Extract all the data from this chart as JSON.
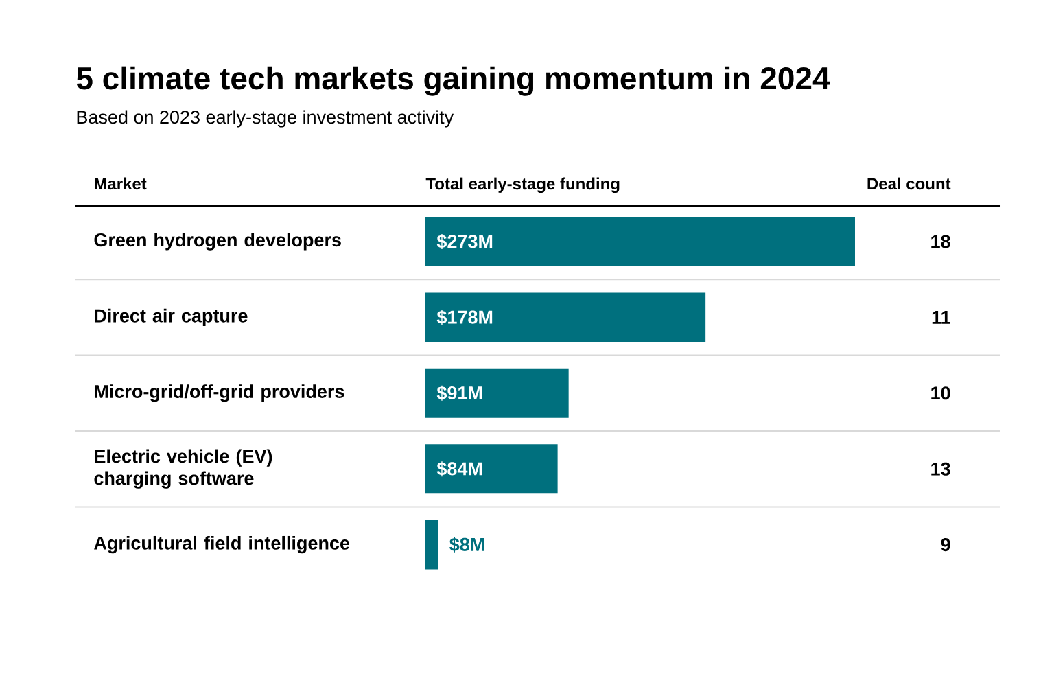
{
  "chart_data": [
    {
      "type": "bar",
      "orientation": "horizontal",
      "title": "5 climate tech markets gaining momentum in 2024",
      "subtitle": "Based on 2023 early-stage investment activity",
      "ylabel": "Market",
      "xlabel": "Total early-stage funding",
      "categories": [
        "Green hydrogen developers",
        "Direct air capture",
        "Micro-grid/off-grid providers",
        "Electric vehicle (EV) charging software",
        "Agricultural field intelligence"
      ],
      "values": [
        273,
        178,
        91,
        84,
        8
      ],
      "value_labels": [
        "$273M",
        "$178M",
        "$91M",
        "$84M",
        "$8M"
      ],
      "color": "#00707e"
    },
    {
      "type": "other",
      "title": "Deal count",
      "categories": [
        null,
        null,
        null,
        null,
        null
      ],
      "values": [
        18,
        11,
        10,
        13,
        9
      ],
      "data_labels": true
    }
  ]
}
